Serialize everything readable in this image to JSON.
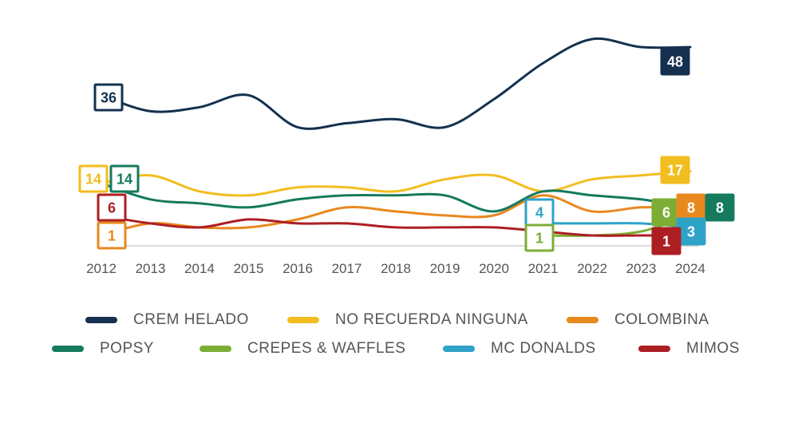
{
  "chart_data": {
    "type": "line",
    "x": [
      "2012",
      "2013",
      "2014",
      "2015",
      "2016",
      "2017",
      "2018",
      "2019",
      "2020",
      "2021",
      "2022",
      "2023",
      "2024"
    ],
    "series": [
      {
        "name": "CREM HELADO",
        "color": "#14314f",
        "values": [
          36,
          32,
          33,
          36,
          28,
          29,
          30,
          28,
          35,
          44,
          50,
          48,
          48
        ],
        "label_start": "36",
        "label_end": "48"
      },
      {
        "name": "NO RECUERDA NINGUNA",
        "color": "#f2bd1f",
        "values": [
          14,
          16,
          12,
          11,
          13,
          13,
          12,
          15,
          16,
          12,
          15,
          16,
          17
        ],
        "label_start": "14",
        "label_end": "17"
      },
      {
        "name": "COLOMBINA",
        "color": "#e8891e",
        "values": [
          1,
          4,
          3,
          3,
          5,
          8,
          7,
          6,
          6,
          11,
          7,
          8,
          8
        ],
        "label_start": "1",
        "label_end": "8"
      },
      {
        "name": "POPSY",
        "color": "#157a5e",
        "values": [
          14,
          10,
          9,
          8,
          10,
          11,
          11,
          11,
          7,
          12,
          11,
          10,
          8
        ],
        "label_start": "14",
        "label_end": "8"
      },
      {
        "name": "CREPES & WAFFLES",
        "color": "#7cae35",
        "values": [
          null,
          null,
          null,
          null,
          null,
          null,
          null,
          null,
          null,
          1,
          1,
          2,
          6
        ],
        "label_start": "1",
        "label_end": "6"
      },
      {
        "name": "MC DONALDS",
        "color": "#2fa2c8",
        "values": [
          null,
          null,
          null,
          null,
          null,
          null,
          null,
          null,
          null,
          4,
          4,
          4,
          3
        ],
        "label_start": "4",
        "label_end": "3"
      },
      {
        "name": "MIMOS",
        "color": "#ad1e23",
        "values": [
          6,
          4,
          3,
          5,
          4,
          4,
          3,
          3,
          3,
          2,
          1,
          1,
          1
        ],
        "label_start": "6",
        "label_end": "1"
      }
    ]
  }
}
